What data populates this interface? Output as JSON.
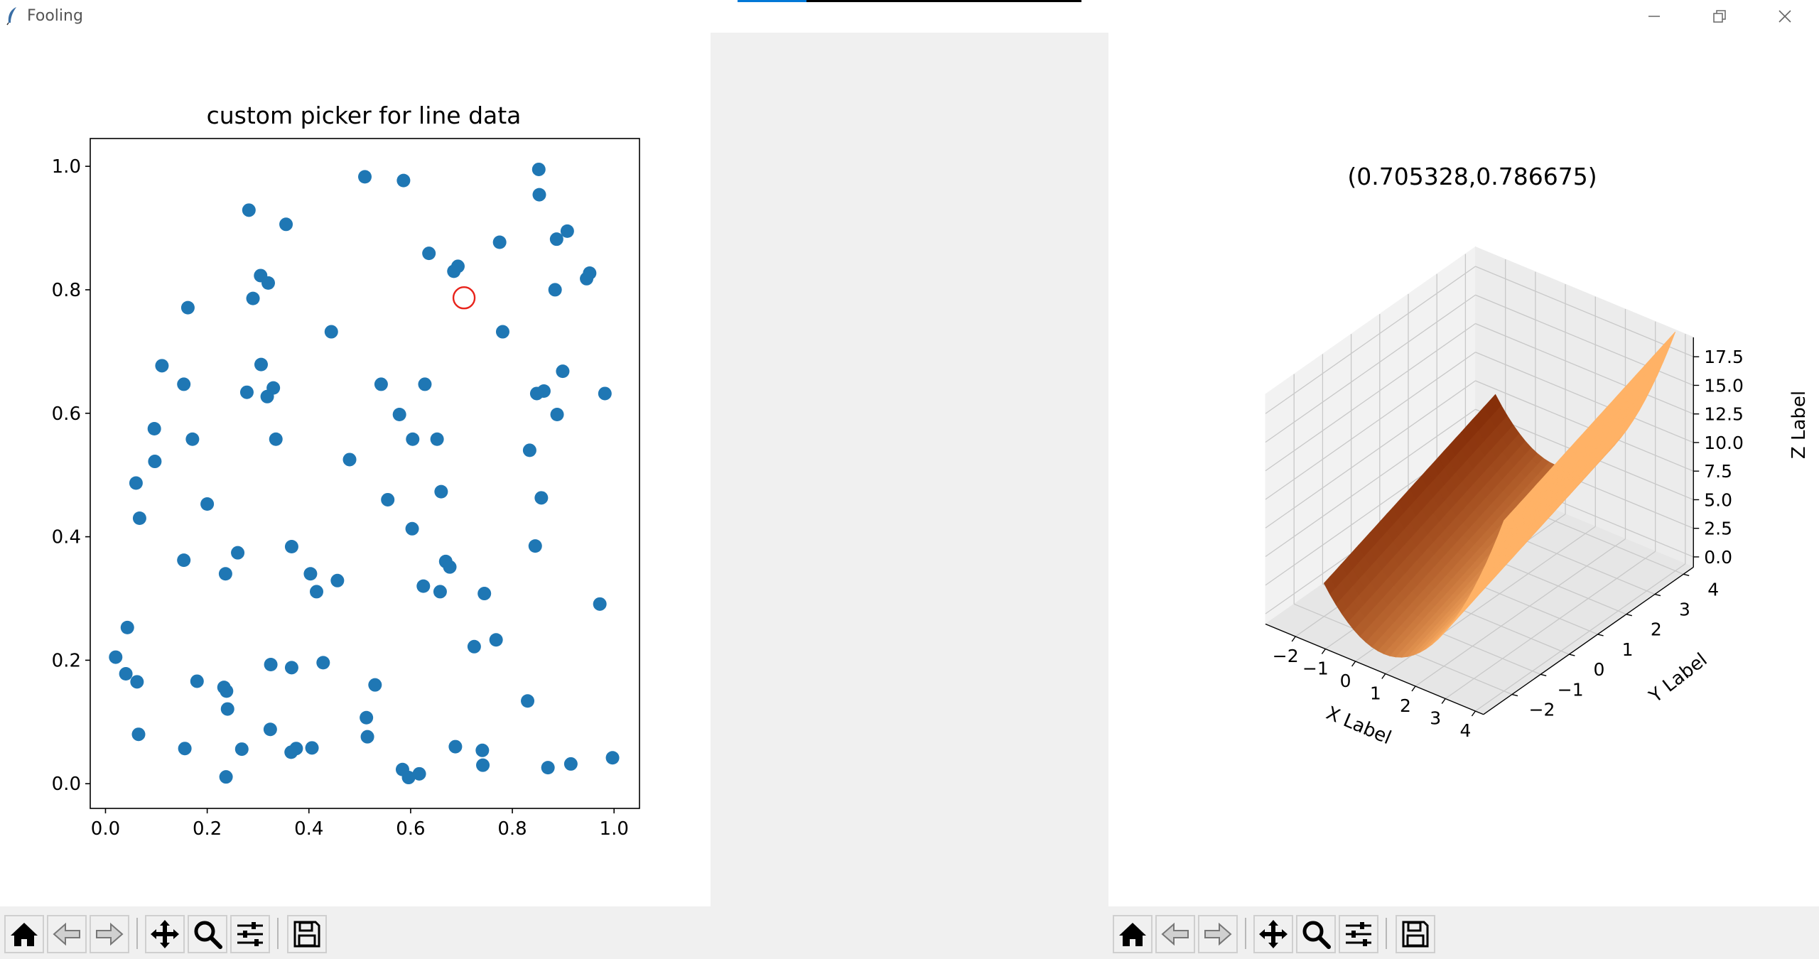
{
  "window": {
    "title": "Fooling",
    "progress_fraction": 0.2,
    "controls": [
      "minimize-icon",
      "restore-icon",
      "close-icon"
    ]
  },
  "left_figure": {
    "chart_data": {
      "type": "scatter",
      "title": "custom picker for line data",
      "xlabel": "",
      "ylabel": "",
      "xlim": [
        -0.03,
        1.05
      ],
      "ylim": [
        -0.04,
        1.045
      ],
      "xticks": [
        "0.0",
        "0.2",
        "0.4",
        "0.6",
        "0.8",
        "1.0"
      ],
      "yticks": [
        "0.0",
        "0.2",
        "0.4",
        "0.6",
        "0.8",
        "1.0"
      ],
      "marker_color": "#1f77b4",
      "selected_point": [
        0.705,
        0.787
      ],
      "selected_ring_color": "#e8231b",
      "grid": false,
      "points": [
        [
          0.51,
          0.983
        ],
        [
          0.586,
          0.977
        ],
        [
          0.852,
          0.995
        ],
        [
          0.853,
          0.954
        ],
        [
          0.282,
          0.929
        ],
        [
          0.355,
          0.906
        ],
        [
          0.908,
          0.895
        ],
        [
          0.887,
          0.882
        ],
        [
          0.775,
          0.877
        ],
        [
          0.636,
          0.859
        ],
        [
          0.693,
          0.838
        ],
        [
          0.685,
          0.83
        ],
        [
          0.952,
          0.827
        ],
        [
          0.946,
          0.818
        ],
        [
          0.305,
          0.823
        ],
        [
          0.32,
          0.811
        ],
        [
          0.884,
          0.8
        ],
        [
          0.29,
          0.786
        ],
        [
          0.162,
          0.771
        ],
        [
          0.444,
          0.732
        ],
        [
          0.781,
          0.732
        ],
        [
          0.111,
          0.677
        ],
        [
          0.306,
          0.679
        ],
        [
          0.899,
          0.668
        ],
        [
          0.154,
          0.647
        ],
        [
          0.542,
          0.647
        ],
        [
          0.628,
          0.647
        ],
        [
          0.33,
          0.641
        ],
        [
          0.862,
          0.636
        ],
        [
          0.848,
          0.632
        ],
        [
          0.278,
          0.634
        ],
        [
          0.318,
          0.627
        ],
        [
          0.982,
          0.632
        ],
        [
          0.578,
          0.598
        ],
        [
          0.888,
          0.598
        ],
        [
          0.096,
          0.575
        ],
        [
          0.171,
          0.558
        ],
        [
          0.335,
          0.558
        ],
        [
          0.604,
          0.558
        ],
        [
          0.652,
          0.558
        ],
        [
          0.834,
          0.54
        ],
        [
          0.097,
          0.522
        ],
        [
          0.48,
          0.525
        ],
        [
          0.06,
          0.487
        ],
        [
          0.66,
          0.473
        ],
        [
          0.857,
          0.463
        ],
        [
          0.555,
          0.46
        ],
        [
          0.2,
          0.453
        ],
        [
          0.067,
          0.43
        ],
        [
          0.603,
          0.413
        ],
        [
          0.845,
          0.385
        ],
        [
          0.366,
          0.384
        ],
        [
          0.26,
          0.374
        ],
        [
          0.154,
          0.362
        ],
        [
          0.669,
          0.36
        ],
        [
          0.677,
          0.351
        ],
        [
          0.236,
          0.34
        ],
        [
          0.403,
          0.34
        ],
        [
          0.456,
          0.329
        ],
        [
          0.625,
          0.32
        ],
        [
          0.415,
          0.311
        ],
        [
          0.658,
          0.311
        ],
        [
          0.745,
          0.308
        ],
        [
          0.972,
          0.291
        ],
        [
          0.043,
          0.253
        ],
        [
          0.768,
          0.233
        ],
        [
          0.725,
          0.222
        ],
        [
          0.02,
          0.205
        ],
        [
          0.428,
          0.196
        ],
        [
          0.325,
          0.193
        ],
        [
          0.366,
          0.188
        ],
        [
          0.04,
          0.178
        ],
        [
          0.18,
          0.166
        ],
        [
          0.062,
          0.165
        ],
        [
          0.53,
          0.16
        ],
        [
          0.233,
          0.156
        ],
        [
          0.238,
          0.15
        ],
        [
          0.83,
          0.134
        ],
        [
          0.24,
          0.121
        ],
        [
          0.513,
          0.107
        ],
        [
          0.324,
          0.088
        ],
        [
          0.065,
          0.08
        ],
        [
          0.515,
          0.076
        ],
        [
          0.688,
          0.06
        ],
        [
          0.268,
          0.056
        ],
        [
          0.375,
          0.057
        ],
        [
          0.406,
          0.058
        ],
        [
          0.156,
          0.057
        ],
        [
          0.741,
          0.054
        ],
        [
          0.365,
          0.051
        ],
        [
          0.997,
          0.042
        ],
        [
          0.742,
          0.03
        ],
        [
          0.915,
          0.032
        ],
        [
          0.87,
          0.026
        ],
        [
          0.584,
          0.023
        ],
        [
          0.617,
          0.016
        ],
        [
          0.596,
          0.01
        ],
        [
          0.237,
          0.011
        ]
      ]
    },
    "toolbar": [
      "home-icon",
      "back-icon",
      "forward-icon",
      "pan-icon",
      "zoom-icon",
      "configure-icon",
      "save-icon"
    ]
  },
  "right_figure": {
    "chart_data": {
      "type": "surface",
      "title": "(0.705328,0.786675)",
      "function": "z = x^2 + y",
      "xlabel": "X Label",
      "ylabel": "Y Label",
      "zlabel": "Z Label",
      "x_range": [
        -2,
        4
      ],
      "y_range": [
        -2,
        4
      ],
      "xticks": [
        "−2",
        "−1",
        "0",
        "1",
        "2",
        "3",
        "4"
      ],
      "yticks": [
        "−2",
        "−1",
        "0",
        "1",
        "2",
        "3",
        "4"
      ],
      "zticks": [
        "0.0",
        "2.5",
        "5.0",
        "7.5",
        "10.0",
        "12.5",
        "15.0",
        "17.5"
      ],
      "colormap": "Oranges_r",
      "color_dark": "#7f2704",
      "color_light": "#ffb266",
      "grid": true
    },
    "toolbar": [
      "home-icon",
      "back-icon",
      "forward-icon",
      "pan-icon",
      "zoom-icon",
      "configure-icon",
      "save-icon"
    ]
  }
}
